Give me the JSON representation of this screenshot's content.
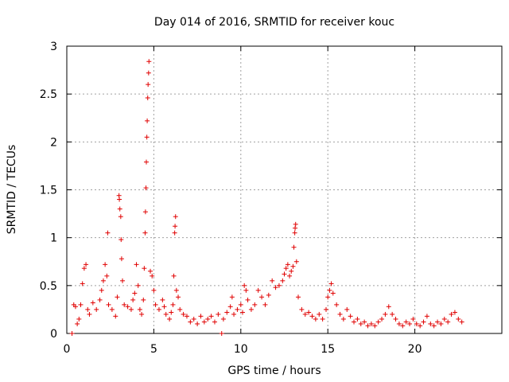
{
  "chart_data": {
    "type": "scatter",
    "title": "Day 014 of 2016, SRMTID for receiver kouc",
    "xlabel": "GPS time / hours",
    "ylabel": "SRMTID / TECUs",
    "xlim": [
      0,
      25
    ],
    "ylim": [
      0,
      3
    ],
    "xticks": [
      0,
      5,
      10,
      15,
      20
    ],
    "xtick_labels": [
      "0",
      "5",
      "10",
      "15",
      "20"
    ],
    "yticks": [
      0,
      0.5,
      1,
      1.5,
      2,
      2.5,
      3
    ],
    "ytick_labels": [
      "0",
      "0.5",
      "1",
      "1.5",
      "2",
      "2.5",
      "3"
    ],
    "grid": true,
    "marker": "+",
    "color": "#e00000",
    "series": [
      {
        "name": "SRMTID",
        "points": [
          [
            0.3,
            0.0
          ],
          [
            0.4,
            0.3
          ],
          [
            0.5,
            0.28
          ],
          [
            0.6,
            0.1
          ],
          [
            0.7,
            0.15
          ],
          [
            0.8,
            0.3
          ],
          [
            0.9,
            0.52
          ],
          [
            1.0,
            0.68
          ],
          [
            1.1,
            0.72
          ],
          [
            1.2,
            0.25
          ],
          [
            1.3,
            0.2
          ],
          [
            1.5,
            0.32
          ],
          [
            1.7,
            0.25
          ],
          [
            1.9,
            0.35
          ],
          [
            2.0,
            0.45
          ],
          [
            2.1,
            0.55
          ],
          [
            2.2,
            0.72
          ],
          [
            2.3,
            0.6
          ],
          [
            2.35,
            1.05
          ],
          [
            2.4,
            0.3
          ],
          [
            2.6,
            0.25
          ],
          [
            2.8,
            0.18
          ],
          [
            2.9,
            0.38
          ],
          [
            3.0,
            1.44
          ],
          [
            3.02,
            1.4
          ],
          [
            3.05,
            1.3
          ],
          [
            3.1,
            1.22
          ],
          [
            3.12,
            0.98
          ],
          [
            3.15,
            0.78
          ],
          [
            3.2,
            0.55
          ],
          [
            3.3,
            0.3
          ],
          [
            3.5,
            0.28
          ],
          [
            3.7,
            0.25
          ],
          [
            3.8,
            0.35
          ],
          [
            3.9,
            0.42
          ],
          [
            4.0,
            0.72
          ],
          [
            4.1,
            0.5
          ],
          [
            4.2,
            0.25
          ],
          [
            4.3,
            0.2
          ],
          [
            4.4,
            0.35
          ],
          [
            4.45,
            0.68
          ],
          [
            4.5,
            1.05
          ],
          [
            4.52,
            1.27
          ],
          [
            4.55,
            1.52
          ],
          [
            4.57,
            1.79
          ],
          [
            4.6,
            2.05
          ],
          [
            4.62,
            2.22
          ],
          [
            4.65,
            2.46
          ],
          [
            4.67,
            2.6
          ],
          [
            4.7,
            2.72
          ],
          [
            4.72,
            2.84
          ],
          [
            4.8,
            0.65
          ],
          [
            4.9,
            0.6
          ],
          [
            5.0,
            0.45
          ],
          [
            5.1,
            0.3
          ],
          [
            5.3,
            0.25
          ],
          [
            5.5,
            0.35
          ],
          [
            5.6,
            0.28
          ],
          [
            5.7,
            0.2
          ],
          [
            5.9,
            0.15
          ],
          [
            6.0,
            0.22
          ],
          [
            6.1,
            0.3
          ],
          [
            6.15,
            0.6
          ],
          [
            6.2,
            1.05
          ],
          [
            6.22,
            1.12
          ],
          [
            6.25,
            1.22
          ],
          [
            6.3,
            0.45
          ],
          [
            6.4,
            0.38
          ],
          [
            6.5,
            0.25
          ],
          [
            6.7,
            0.2
          ],
          [
            6.9,
            0.18
          ],
          [
            7.1,
            0.12
          ],
          [
            7.3,
            0.15
          ],
          [
            7.5,
            0.1
          ],
          [
            7.7,
            0.18
          ],
          [
            7.9,
            0.12
          ],
          [
            8.1,
            0.15
          ],
          [
            8.3,
            0.18
          ],
          [
            8.5,
            0.12
          ],
          [
            8.7,
            0.2
          ],
          [
            8.9,
            0.0
          ],
          [
            9.0,
            0.15
          ],
          [
            9.2,
            0.22
          ],
          [
            9.4,
            0.28
          ],
          [
            9.5,
            0.38
          ],
          [
            9.6,
            0.2
          ],
          [
            9.8,
            0.25
          ],
          [
            10.0,
            0.3
          ],
          [
            10.1,
            0.22
          ],
          [
            10.2,
            0.5
          ],
          [
            10.3,
            0.45
          ],
          [
            10.4,
            0.35
          ],
          [
            10.6,
            0.25
          ],
          [
            10.8,
            0.3
          ],
          [
            11.0,
            0.45
          ],
          [
            11.2,
            0.38
          ],
          [
            11.4,
            0.3
          ],
          [
            11.6,
            0.4
          ],
          [
            11.8,
            0.55
          ],
          [
            12.0,
            0.48
          ],
          [
            12.2,
            0.5
          ],
          [
            12.4,
            0.55
          ],
          [
            12.5,
            0.62
          ],
          [
            12.6,
            0.68
          ],
          [
            12.7,
            0.72
          ],
          [
            12.8,
            0.6
          ],
          [
            12.9,
            0.65
          ],
          [
            13.0,
            0.7
          ],
          [
            13.05,
            0.9
          ],
          [
            13.1,
            1.05
          ],
          [
            13.12,
            1.1
          ],
          [
            13.15,
            1.14
          ],
          [
            13.2,
            0.75
          ],
          [
            13.3,
            0.38
          ],
          [
            13.5,
            0.25
          ],
          [
            13.7,
            0.2
          ],
          [
            13.9,
            0.22
          ],
          [
            14.1,
            0.18
          ],
          [
            14.3,
            0.15
          ],
          [
            14.5,
            0.2
          ],
          [
            14.7,
            0.15
          ],
          [
            14.9,
            0.25
          ],
          [
            15.0,
            0.38
          ],
          [
            15.1,
            0.45
          ],
          [
            15.2,
            0.52
          ],
          [
            15.3,
            0.42
          ],
          [
            15.5,
            0.3
          ],
          [
            15.7,
            0.2
          ],
          [
            15.9,
            0.15
          ],
          [
            16.1,
            0.25
          ],
          [
            16.3,
            0.18
          ],
          [
            16.5,
            0.12
          ],
          [
            16.7,
            0.15
          ],
          [
            16.9,
            0.1
          ],
          [
            17.1,
            0.12
          ],
          [
            17.3,
            0.08
          ],
          [
            17.5,
            0.1
          ],
          [
            17.7,
            0.08
          ],
          [
            17.9,
            0.12
          ],
          [
            18.1,
            0.15
          ],
          [
            18.3,
            0.2
          ],
          [
            18.5,
            0.28
          ],
          [
            18.7,
            0.2
          ],
          [
            18.9,
            0.15
          ],
          [
            19.1,
            0.1
          ],
          [
            19.3,
            0.08
          ],
          [
            19.5,
            0.12
          ],
          [
            19.7,
            0.1
          ],
          [
            19.9,
            0.15
          ],
          [
            20.1,
            0.1
          ],
          [
            20.3,
            0.08
          ],
          [
            20.5,
            0.12
          ],
          [
            20.7,
            0.18
          ],
          [
            20.9,
            0.1
          ],
          [
            21.1,
            0.08
          ],
          [
            21.3,
            0.12
          ],
          [
            21.5,
            0.1
          ],
          [
            21.7,
            0.15
          ],
          [
            21.9,
            0.12
          ],
          [
            22.1,
            0.2
          ],
          [
            22.3,
            0.22
          ],
          [
            22.5,
            0.15
          ],
          [
            22.7,
            0.12
          ]
        ]
      }
    ]
  }
}
